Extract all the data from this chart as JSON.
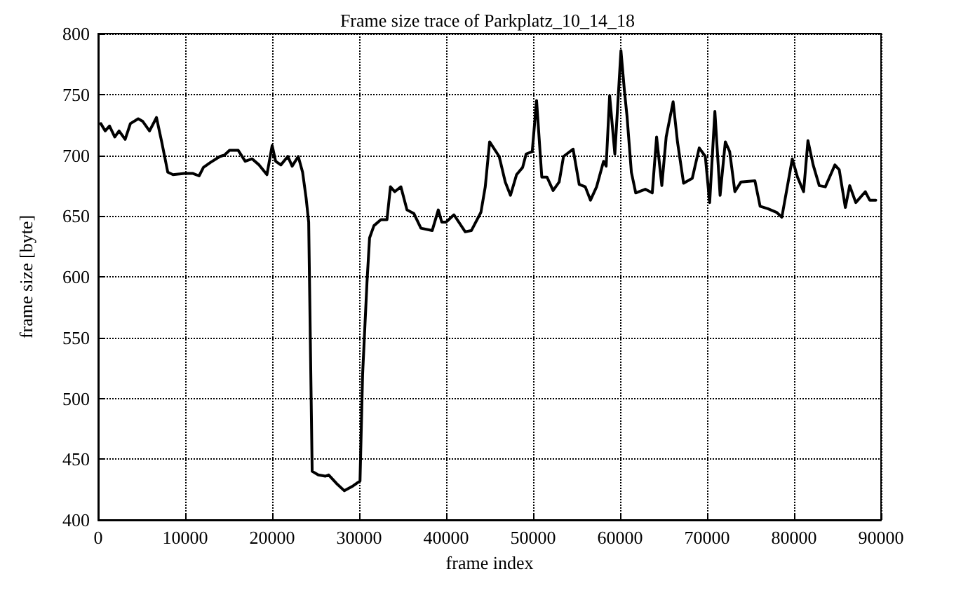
{
  "chart_data": {
    "type": "line",
    "title": "Frame size trace of Parkplatz_10_14_18",
    "xlabel": "frame index",
    "ylabel": "frame size [byte]",
    "xlim": [
      0,
      90000
    ],
    "xticks": [
      0,
      10000,
      20000,
      30000,
      40000,
      50000,
      60000,
      70000,
      80000,
      90000
    ],
    "ylim": [
      400,
      800
    ],
    "yticks": [
      400,
      450,
      500,
      550,
      600,
      650,
      700,
      750,
      800
    ],
    "grid": true,
    "marker": "none",
    "line_style": "solid",
    "series": [
      {
        "color": "#000000",
        "x": [
          300,
          800,
          1300,
          1900,
          2400,
          3100,
          3700,
          4600,
          5100,
          5900,
          6700,
          7300,
          8000,
          8600,
          9900,
          10900,
          11600,
          12100,
          12900,
          14000,
          14500,
          15100,
          16100,
          16900,
          17700,
          18500,
          19400,
          20000,
          20400,
          21000,
          21800,
          22300,
          23000,
          23500,
          23900,
          24200,
          24600,
          25300,
          26100,
          26500,
          27400,
          28300,
          29300,
          30100,
          30400,
          30900,
          31200,
          31700,
          32500,
          33200,
          33600,
          34100,
          34800,
          35500,
          36300,
          37100,
          38400,
          39100,
          39500,
          40000,
          40900,
          42200,
          42900,
          44000,
          44500,
          45000,
          46100,
          46800,
          47400,
          48100,
          48800,
          49200,
          49900,
          50400,
          51000,
          51600,
          52300,
          53000,
          53500,
          54600,
          55300,
          56000,
          56600,
          57300,
          58100,
          58400,
          58800,
          59400,
          60100,
          60500,
          60800,
          61300,
          61800,
          62900,
          63700,
          64200,
          64800,
          65300,
          66100,
          66600,
          67300,
          68300,
          69100,
          69800,
          70300,
          70900,
          71500,
          72100,
          72600,
          73200,
          73900,
          75500,
          76100,
          77000,
          78000,
          78600,
          79800,
          80400,
          81100,
          81600,
          82200,
          82900,
          83600,
          84700,
          85200,
          85900,
          86400,
          87100,
          88200,
          88700,
          89400
        ],
        "values": [
          726,
          720,
          724,
          715,
          720,
          713,
          726,
          730,
          728,
          720,
          731,
          711,
          686,
          684,
          685,
          685,
          683,
          690,
          694,
          699,
          700,
          704,
          704,
          695,
          697,
          692,
          684,
          708,
          695,
          692,
          699,
          691,
          699,
          686,
          665,
          645,
          440,
          437,
          436,
          437,
          430,
          424,
          428,
          432,
          520,
          595,
          632,
          642,
          647,
          647,
          674,
          670,
          674,
          655,
          652,
          640,
          638,
          655,
          645,
          645,
          651,
          637,
          638,
          653,
          674,
          711,
          699,
          678,
          667,
          684,
          690,
          701,
          703,
          745,
          682,
          682,
          671,
          678,
          699,
          705,
          676,
          674,
          663,
          674,
          695,
          691,
          749,
          701,
          786,
          753,
          732,
          686,
          669,
          672,
          669,
          715,
          675,
          715,
          744,
          711,
          677,
          681,
          706,
          699,
          661,
          736,
          667,
          711,
          703,
          670,
          678,
          679,
          658,
          656,
          653,
          649,
          697,
          682,
          670,
          712,
          692,
          675,
          674,
          692,
          688,
          657,
          675,
          661,
          670,
          663,
          663
        ]
      }
    ]
  }
}
